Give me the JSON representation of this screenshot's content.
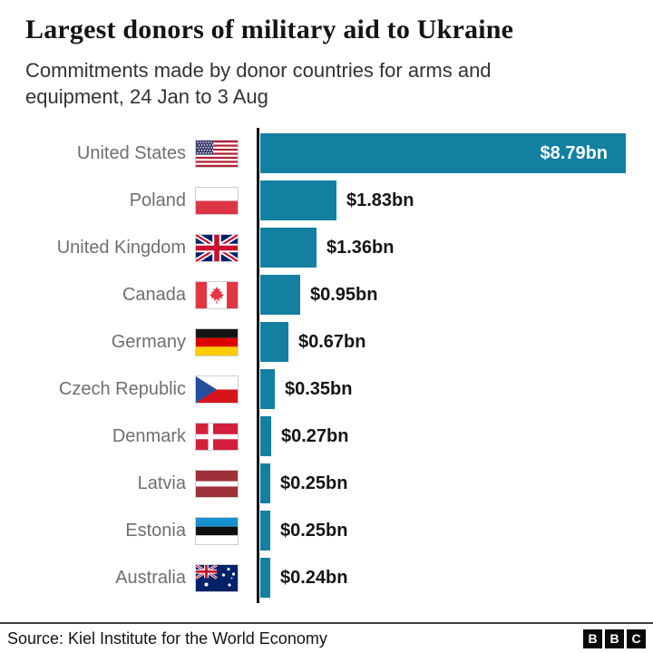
{
  "chart_data": {
    "type": "bar",
    "orientation": "horizontal",
    "title": "Largest donors of military aid to Ukraine",
    "subtitle": "Commitments made by donor countries for arms and equipment, 24 Jan to 3 Aug",
    "unit": "$bn",
    "xlim": [
      0,
      9
    ],
    "grid": false,
    "legend": false,
    "bar_color": "#1380A1",
    "axis_color": "#141414",
    "categories": [
      "United States",
      "Poland",
      "United Kingdom",
      "Canada",
      "Germany",
      "Czech Republic",
      "Denmark",
      "Latvia",
      "Estonia",
      "Australia"
    ],
    "values": [
      8.79,
      1.83,
      1.36,
      0.95,
      0.67,
      0.35,
      0.27,
      0.25,
      0.25,
      0.24
    ],
    "value_labels": [
      "$8.79bn",
      "$1.83bn",
      "$1.36bn",
      "$0.95bn",
      "$0.67bn",
      "$0.35bn",
      "$0.27bn",
      "$0.25bn",
      "$0.25bn",
      "$0.24bn"
    ],
    "flag_icons": [
      "us-flag-icon",
      "poland-flag-icon",
      "uk-flag-icon",
      "canada-flag-icon",
      "germany-flag-icon",
      "czech-flag-icon",
      "denmark-flag-icon",
      "latvia-flag-icon",
      "estonia-flag-icon",
      "australia-flag-icon"
    ],
    "flag_codes": [
      "us",
      "pl",
      "gb",
      "ca",
      "de",
      "cz",
      "dk",
      "lv",
      "ee",
      "au"
    ]
  },
  "footer": {
    "source": "Source: Kiel Institute for the World Economy",
    "logo_letters": [
      "B",
      "B",
      "C"
    ]
  }
}
